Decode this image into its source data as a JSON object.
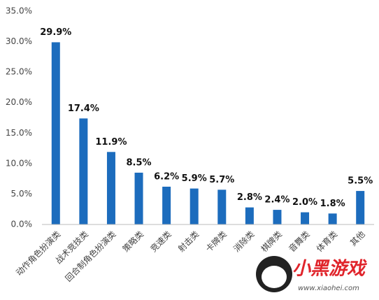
{
  "chart_data": {
    "type": "bar",
    "categories": [
      "动作角色扮演类",
      "战术竞技类",
      "回合制角色扮演类",
      "策略类",
      "竞速类",
      "射击类",
      "卡牌类",
      "消除类",
      "棋牌类",
      "音舞类",
      "体育类",
      "其他"
    ],
    "values": [
      29.9,
      17.4,
      11.9,
      8.5,
      6.2,
      5.9,
      5.7,
      2.8,
      2.4,
      2.0,
      1.8,
      5.5
    ],
    "value_labels": [
      "29.9%",
      "17.4%",
      "11.9%",
      "8.5%",
      "6.2%",
      "5.9%",
      "5.7%",
      "2.8%",
      "2.4%",
      "2.0%",
      "1.8%",
      "5.5%"
    ],
    "color": "#1c6cbd",
    "ylim": [
      0,
      35
    ],
    "yticks": [
      {
        "value": 0,
        "label": "0.0%"
      },
      {
        "value": 5,
        "label": "5.0%"
      },
      {
        "value": 10,
        "label": "10.0%"
      },
      {
        "value": 15,
        "label": "15.0%"
      },
      {
        "value": 20,
        "label": "20.0%"
      },
      {
        "value": 25,
        "label": "25.0%"
      },
      {
        "value": 30,
        "label": "30.0%"
      },
      {
        "value": 35,
        "label": "35.0%"
      }
    ],
    "grid": false
  },
  "watermark": {
    "name": "小黑游戏",
    "url": "www.xiaohei.com"
  }
}
